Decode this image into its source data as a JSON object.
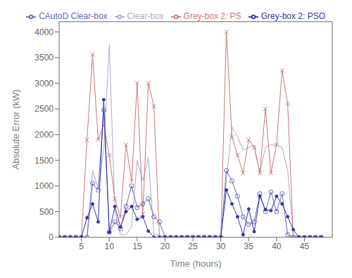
{
  "chart_data": {
    "type": "line",
    "xlabel": "Time (hours)",
    "ylabel": "Absolute Error (kW)",
    "xlim": [
      1,
      50
    ],
    "ylim": [
      0,
      4200
    ],
    "xticks": [
      5,
      10,
      15,
      20,
      25,
      30,
      35,
      40,
      45
    ],
    "yticks": [
      0,
      500,
      1000,
      1500,
      2000,
      2500,
      3000,
      3500,
      4000
    ],
    "grid": false,
    "legend": "upper right",
    "x": [
      1,
      2,
      3,
      4,
      5,
      6,
      7,
      8,
      9,
      10,
      11,
      12,
      13,
      14,
      15,
      16,
      17,
      18,
      19,
      20,
      21,
      22,
      23,
      24,
      25,
      26,
      27,
      28,
      29,
      30,
      31,
      32,
      33,
      34,
      35,
      36,
      37,
      38,
      39,
      40,
      41,
      42,
      43,
      44,
      45,
      46,
      47,
      48
    ],
    "series": [
      {
        "name": "Clear-box",
        "color": "#aaaacc",
        "marker": "none",
        "values": [
          0,
          0,
          0,
          0,
          0,
          0,
          1300,
          950,
          1700,
          3750,
          500,
          50,
          50,
          200,
          1500,
          1100,
          1550,
          50,
          50,
          0,
          0,
          0,
          0,
          0,
          0,
          0,
          0,
          0,
          0,
          0,
          1100,
          2150,
          1950,
          1700,
          1750,
          1800,
          1250,
          1750,
          1800,
          1800,
          1750,
          1300,
          50,
          0,
          0,
          0,
          0,
          0
        ]
      },
      {
        "name": "CAutoD Clear-box",
        "color": "#6666bb",
        "marker": "circle",
        "values": [
          0,
          0,
          0,
          0,
          0,
          0,
          1050,
          920,
          2480,
          100,
          300,
          170,
          600,
          1000,
          580,
          650,
          750,
          400,
          300,
          0,
          0,
          0,
          0,
          0,
          0,
          0,
          0,
          0,
          0,
          0,
          1300,
          1100,
          800,
          400,
          250,
          300,
          850,
          500,
          880,
          500,
          850,
          50,
          0,
          0,
          0,
          0,
          0,
          0
        ]
      },
      {
        "name": "Grey-box 2: PS",
        "color": "#cc7777",
        "marker": "x",
        "values": [
          0,
          0,
          0,
          0,
          0,
          1900,
          3560,
          1900,
          2200,
          1600,
          750,
          400,
          1800,
          1100,
          3000,
          450,
          3000,
          2550,
          0,
          0,
          0,
          0,
          0,
          0,
          0,
          0,
          0,
          0,
          0,
          0,
          4000,
          1950,
          1600,
          1250,
          1900,
          1750,
          1250,
          2500,
          1250,
          1800,
          3250,
          2600,
          0,
          0,
          0,
          0,
          0,
          0
        ]
      },
      {
        "name": "Grey-box 2: PSO",
        "color": "#3333aa",
        "marker": "dot",
        "values": [
          0,
          0,
          0,
          0,
          0,
          380,
          650,
          300,
          2680,
          100,
          600,
          200,
          500,
          600,
          350,
          400,
          120,
          0,
          0,
          0,
          0,
          0,
          0,
          0,
          0,
          0,
          0,
          0,
          0,
          0,
          920,
          650,
          400,
          50,
          550,
          110,
          800,
          540,
          520,
          800,
          650,
          400,
          150,
          0,
          0,
          0,
          0,
          0
        ]
      }
    ]
  }
}
